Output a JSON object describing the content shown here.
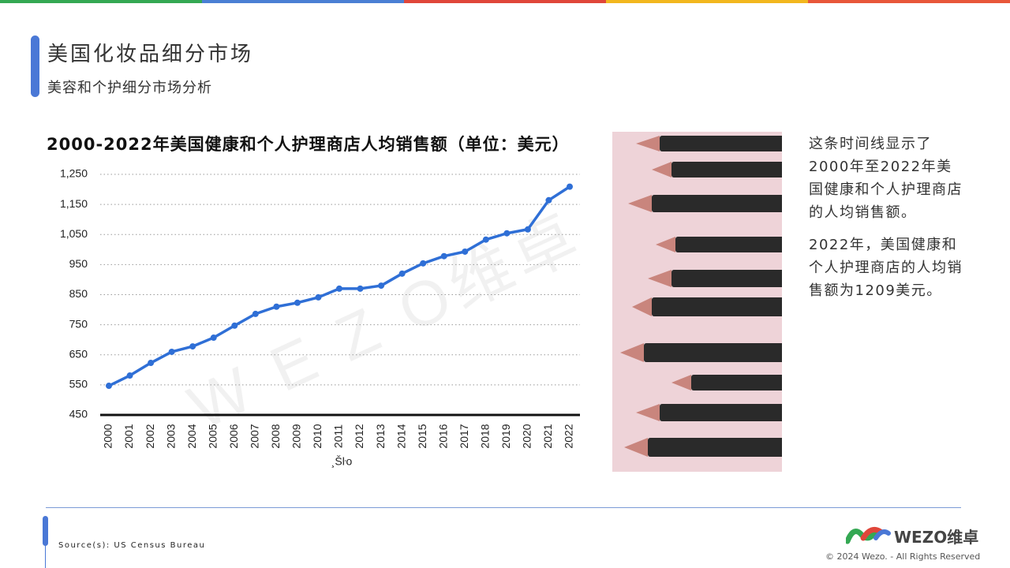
{
  "header": {
    "title": "美国化妆品细分市场",
    "subtitle": "美容和个护细分市场分析"
  },
  "chart_data": {
    "type": "line",
    "title": "2000-2022年美国健康和个人护理商店人均销售额（单位：美元）",
    "x_label": "¸Šŀo",
    "categories": [
      "2000",
      "2001",
      "2002",
      "2003",
      "2004",
      "2005",
      "2006",
      "2007",
      "2008",
      "2009",
      "2010",
      "2011",
      "2012",
      "2013",
      "2014",
      "2015",
      "2016",
      "2017",
      "2018",
      "2019",
      "2020",
      "2021",
      "2022"
    ],
    "values": [
      547,
      581,
      623,
      660,
      678,
      707,
      747,
      786,
      810,
      823,
      841,
      870,
      870,
      880,
      920,
      954,
      978,
      993,
      1033,
      1054,
      1067,
      1164,
      1209
    ],
    "color": "#2f6fd6",
    "ylim": [
      450,
      1250
    ],
    "yticks": [
      450,
      550,
      650,
      750,
      850,
      950,
      {
        "value": 1050,
        "label": "1,050"
      },
      {
        "value": 1150,
        "label": "1,150"
      },
      {
        "value": 1250,
        "label": "1,250"
      }
    ],
    "grid": true
  },
  "side_text": [
    "这条时间线显示了2000年至2022年美国健康和个人护理商店的人均销售额。",
    "2022年，美国健康和个人护理商店的人均销售额为1209美元。"
  ],
  "watermark": "W E Z O维卓",
  "footer": {
    "source": "Source(s): US Census Bureau",
    "logo": "WEZO维卓",
    "copyright": "© 2024 Wezo. - All Rights Reserved"
  }
}
